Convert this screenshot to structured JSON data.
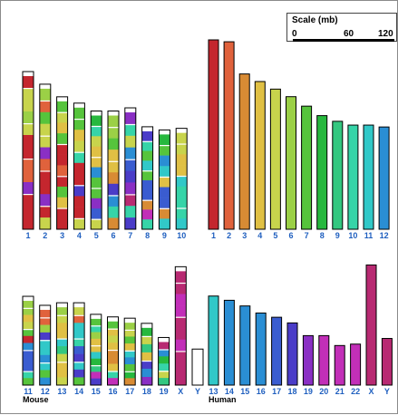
{
  "scale": {
    "title": "Scale (mb)",
    "ticks": [
      "0",
      "60",
      "120"
    ]
  },
  "groups": {
    "mouse": "Mouse",
    "human": "Human"
  },
  "colors": {
    "label": "#1f5fbf",
    "palette": [
      "#c4262e",
      "#e0623c",
      "#d88b34",
      "#e0c044",
      "#c8d44c",
      "#9bd046",
      "#56c43c",
      "#27b83e",
      "#33c780",
      "#36d4a8",
      "#31c8c8",
      "#2a8ed4",
      "#3a5cd0",
      "#4a3cc8",
      "#8a2fc4",
      "#c22fb8",
      "#b82a72"
    ]
  },
  "mouse": {
    "row1": [
      {
        "label": "1",
        "length": 1.0,
        "bands": [
          0,
          4,
          4,
          5,
          4,
          0,
          0,
          1,
          1,
          14,
          0,
          0,
          0
        ]
      },
      {
        "label": "2",
        "length": 0.92,
        "bands": [
          5,
          1,
          6,
          4,
          4,
          14,
          1,
          0,
          0,
          14,
          0,
          4
        ]
      },
      {
        "label": "3",
        "length": 0.84,
        "bands": [
          6,
          4,
          3,
          6,
          0,
          0,
          1,
          0,
          6,
          3,
          0,
          0
        ]
      },
      {
        "label": "4",
        "length": 0.8,
        "bands": [
          6,
          6,
          3,
          4,
          9,
          0,
          0,
          13,
          0,
          0,
          4
        ]
      },
      {
        "label": "5",
        "length": 0.75,
        "bands": [
          7,
          9,
          4,
          3,
          3,
          11,
          6,
          6,
          14,
          12,
          4
        ]
      },
      {
        "label": "6",
        "length": 0.75,
        "bands": [
          5,
          5,
          6,
          3,
          3,
          2,
          13,
          11,
          9,
          2
        ]
      },
      {
        "label": "7",
        "length": 0.77,
        "bands": [
          14,
          9,
          4,
          11,
          12,
          13,
          14,
          16,
          9,
          13
        ]
      },
      {
        "label": "8",
        "length": 0.65,
        "bands": [
          13,
          9,
          6,
          10,
          6,
          12,
          12,
          2,
          15,
          9
        ]
      },
      {
        "label": "9",
        "length": 0.63,
        "bands": [
          7,
          6,
          11,
          10,
          3,
          12,
          12,
          2,
          10
        ]
      },
      {
        "label": "10",
        "length": 0.64,
        "bands": [
          4,
          4,
          3,
          3,
          10,
          9,
          9,
          9,
          10
        ]
      }
    ],
    "row2": [
      {
        "label": "11",
        "length": 0.69,
        "bands": [
          5,
          5,
          3,
          4,
          6,
          0,
          11,
          12,
          12,
          12,
          9,
          6
        ]
      },
      {
        "label": "12",
        "length": 0.62,
        "bands": [
          1,
          1,
          5,
          13,
          10,
          10,
          11,
          10,
          6,
          11
        ]
      },
      {
        "label": "13",
        "length": 0.64,
        "bands": [
          5,
          4,
          3,
          3,
          10,
          8,
          4,
          3,
          3,
          4
        ]
      },
      {
        "label": "14",
        "length": 0.64,
        "bands": [
          4,
          1,
          10,
          10,
          9,
          12,
          13,
          10,
          13,
          6
        ]
      },
      {
        "label": "15",
        "length": 0.55,
        "bands": [
          6,
          9,
          5,
          3,
          3,
          10,
          7,
          8,
          15,
          13
        ]
      },
      {
        "label": "16",
        "length": 0.53,
        "bands": [
          6,
          3,
          4,
          3,
          2,
          2,
          3,
          9,
          15
        ]
      },
      {
        "label": "17",
        "length": 0.52,
        "bands": [
          5,
          4,
          6,
          3,
          10,
          11,
          6,
          7,
          2
        ]
      },
      {
        "label": "18",
        "length": 0.48,
        "bands": [
          7,
          4,
          8,
          3,
          13,
          11,
          14
        ]
      },
      {
        "label": "19",
        "length": 0.37,
        "bands": [
          16,
          11,
          7,
          9,
          4,
          8
        ]
      },
      {
        "label": "X",
        "length": 0.92,
        "bands": [
          16,
          16,
          15,
          15,
          16,
          16,
          15,
          16,
          16,
          16
        ]
      },
      {
        "label": "Y",
        "length": 0.28,
        "blank": true,
        "bands": []
      }
    ]
  },
  "human": {
    "row1": [
      {
        "label": "1",
        "length": 1.0,
        "color": 0
      },
      {
        "label": "2",
        "length": 0.99,
        "color": 1
      },
      {
        "label": "3",
        "length": 0.82,
        "color": 2
      },
      {
        "label": "4",
        "length": 0.78,
        "color": 3
      },
      {
        "label": "5",
        "length": 0.74,
        "color": 4
      },
      {
        "label": "6",
        "length": 0.7,
        "color": 5
      },
      {
        "label": "7",
        "length": 0.65,
        "color": 6
      },
      {
        "label": "8",
        "length": 0.6,
        "color": 7
      },
      {
        "label": "9",
        "length": 0.57,
        "color": 8
      },
      {
        "label": "10",
        "length": 0.55,
        "color": 9
      },
      {
        "label": "11",
        "length": 0.55,
        "color": 10
      },
      {
        "label": "12",
        "length": 0.54,
        "color": 11
      }
    ],
    "row2": [
      {
        "label": "13",
        "length": 0.63,
        "color": 10
      },
      {
        "label": "14",
        "length": 0.6,
        "color": 11
      },
      {
        "label": "15",
        "length": 0.56,
        "color": 11
      },
      {
        "label": "16",
        "length": 0.51,
        "color": 11
      },
      {
        "label": "17",
        "length": 0.48,
        "color": 12
      },
      {
        "label": "18",
        "length": 0.44,
        "color": 13
      },
      {
        "label": "19",
        "length": 0.35,
        "color": 14
      },
      {
        "label": "20",
        "length": 0.35,
        "color": 15
      },
      {
        "label": "21",
        "length": 0.28,
        "color": 15
      },
      {
        "label": "22",
        "length": 0.29,
        "color": 15
      },
      {
        "label": "X",
        "length": 0.85,
        "color": 16
      },
      {
        "label": "Y",
        "length": 0.33,
        "color": 16
      }
    ]
  }
}
